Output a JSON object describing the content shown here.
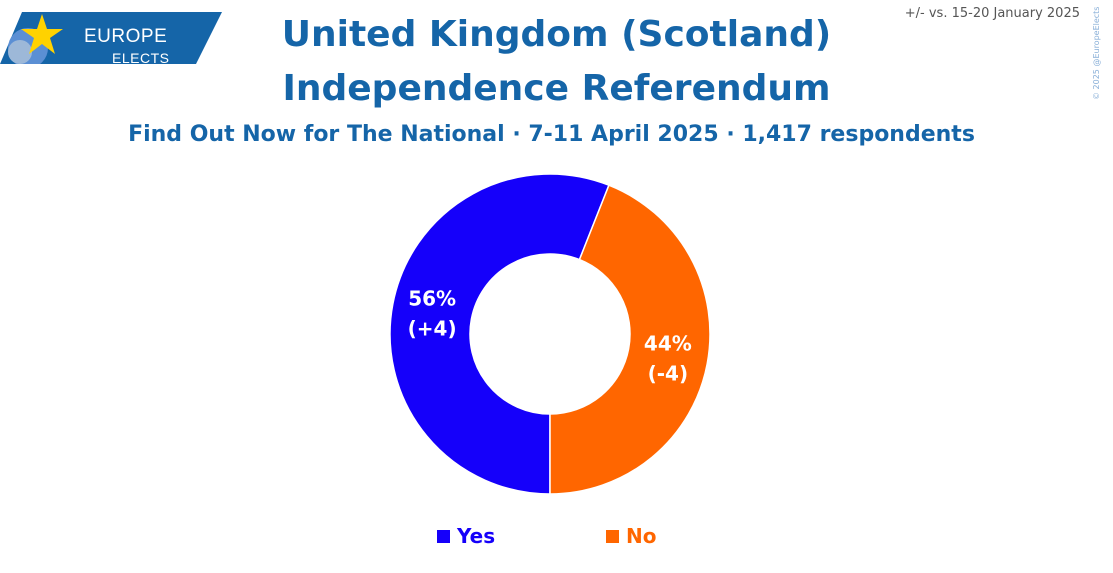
{
  "logo": {
    "line1": "EUROPE",
    "line2": "ELECTS"
  },
  "header": {
    "title_line1": "United Kingdom (Scotland)",
    "title_line2": "Independence Referendum",
    "subtitle": "Find Out Now for The National · 7-11 April 2025 · 1,417 respondents",
    "comparison_note": "+/- vs. 15-20 January 2025",
    "copyright": "© 2025 @EuropeElects"
  },
  "colors": {
    "brand": "#1565a8",
    "yes": "#1500fa",
    "no": "#ff6600"
  },
  "chart_data": {
    "type": "pie",
    "style": "donut",
    "title": "United Kingdom (Scotland) Independence Referendum",
    "categories": [
      "Yes",
      "No"
    ],
    "values": [
      56,
      44
    ],
    "changes": [
      "+4",
      "-4"
    ],
    "value_labels": [
      "56%",
      "44%"
    ],
    "change_labels": [
      "(+4)",
      "(-4)"
    ],
    "colors": [
      "#1500fa",
      "#ff6600"
    ],
    "legend_position": "bottom"
  }
}
